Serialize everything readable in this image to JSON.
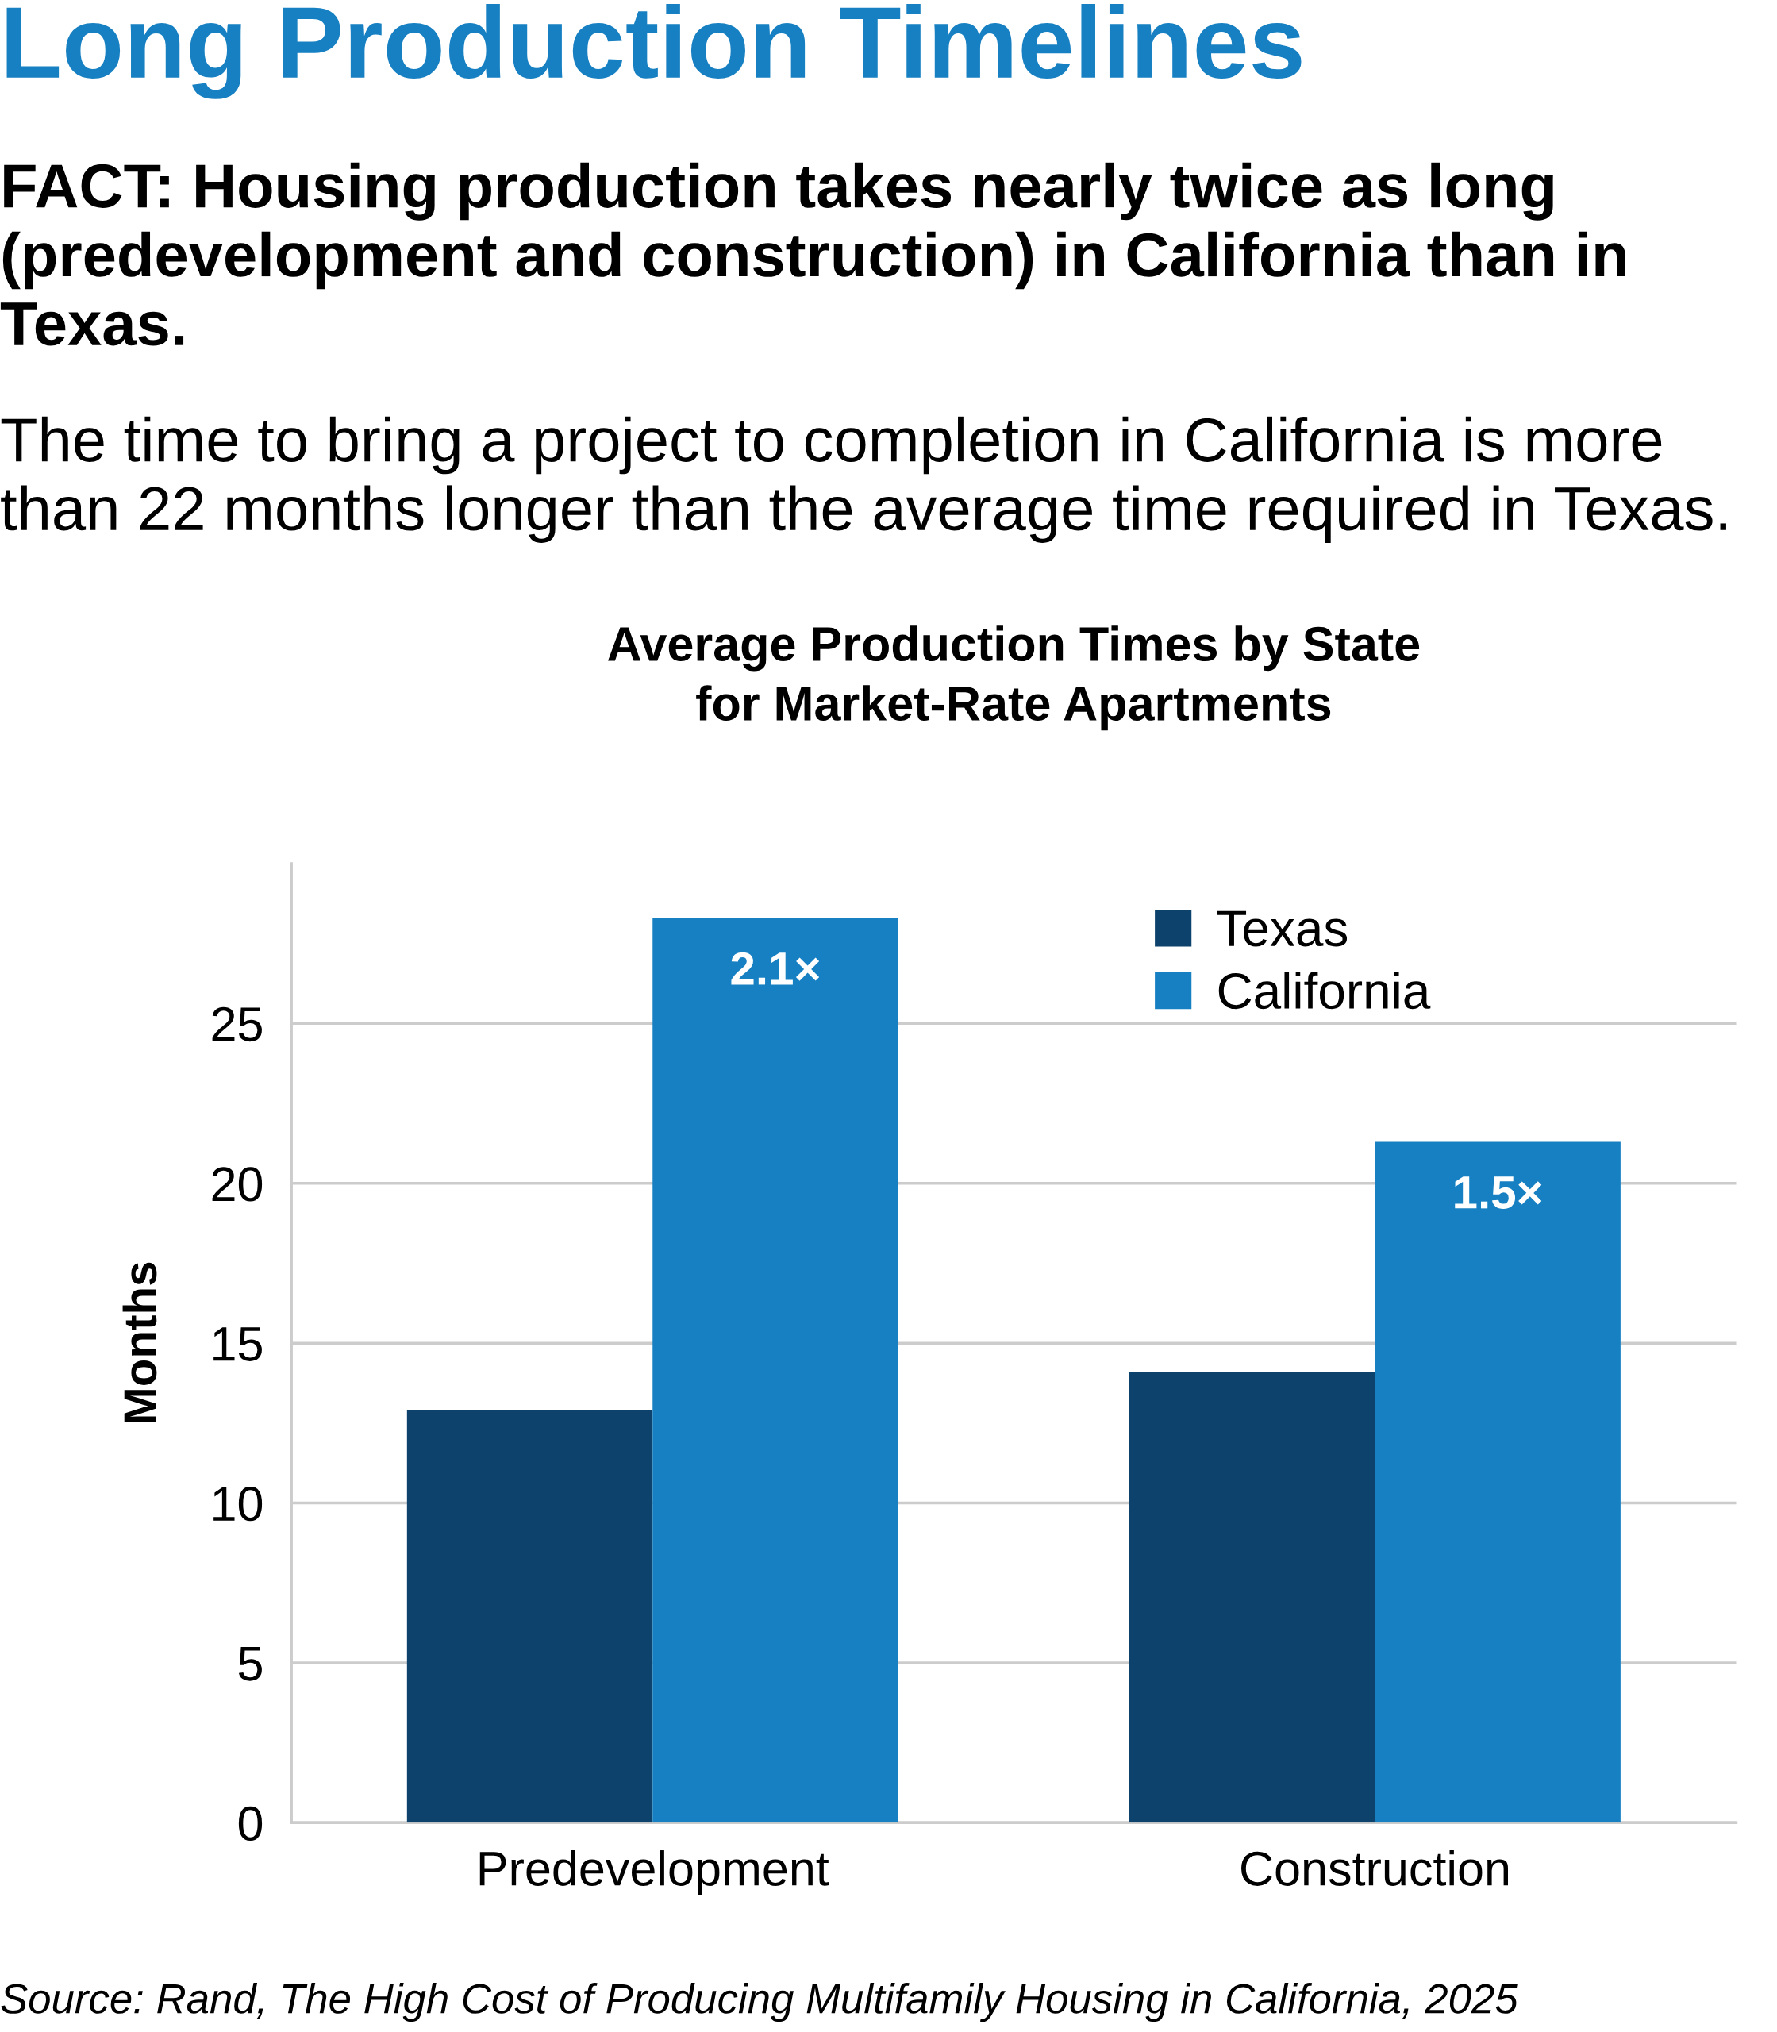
{
  "chart_data": {
    "type": "bar",
    "title": "Average Production Times by State\nfor Market-Rate Apartments",
    "ylabel": "Months",
    "categories": [
      "Predevelopment",
      "Construction"
    ],
    "series": [
      {
        "name": "Texas",
        "color": "#0c426b",
        "values": [
          12.9,
          14.1
        ]
      },
      {
        "name": "California",
        "color": "#1780c2",
        "values": [
          28.3,
          21.3
        ]
      }
    ],
    "ylim": [
      0,
      30
    ],
    "yticks": [
      0,
      5,
      10,
      15,
      20,
      25
    ],
    "grid": "y",
    "legend": "top right",
    "annotations": [
      "Long Production Timelines",
      "FACT: Housing production takes nearly twice as long (predevelopment and construction) in California than in Texas.",
      "The time to bring a project to completion in California is more than 22 months longer than the average time required in Texas.",
      {
        "text": "2.1×",
        "x": "Predevelopment",
        "y": 28.3
      },
      {
        "text": "1.5×",
        "x": "Construction",
        "y": 21.3
      },
      "Source: Rand, The High Cost of Producing Multifamily Housing in California, 2025"
    ]
  }
}
